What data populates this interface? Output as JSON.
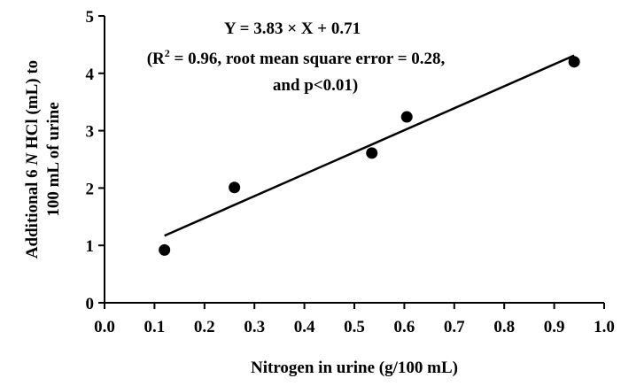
{
  "chart_data": {
    "type": "scatter",
    "title": "",
    "xlabel": "Nitrogen in urine (g/100 mL)",
    "ylabel_parts": [
      "Additional 6 ",
      "N",
      " HCl (mL) to"
    ],
    "ylabel_line2": "100 mL of urine",
    "xlim": [
      0.0,
      1.0
    ],
    "ylim": [
      0,
      5
    ],
    "x_ticks": [
      0.0,
      0.1,
      0.2,
      0.3,
      0.4,
      0.5,
      0.6,
      0.7,
      0.8,
      0.9,
      1.0
    ],
    "x_tick_labels": [
      "0.0",
      "0.1",
      "0.2",
      "0.3",
      "0.4",
      "0.5",
      "0.6",
      "0.7",
      "0.8",
      "0.9",
      "1.0"
    ],
    "y_ticks": [
      0,
      1,
      2,
      3,
      4,
      5
    ],
    "y_tick_labels": [
      "0",
      "1",
      "2",
      "3",
      "4",
      "5"
    ],
    "grid": false,
    "legend": "none",
    "points": [
      {
        "x": 0.12,
        "y": 0.92
      },
      {
        "x": 0.26,
        "y": 2.01
      },
      {
        "x": 0.535,
        "y": 2.61
      },
      {
        "x": 0.605,
        "y": 3.24
      },
      {
        "x": 0.94,
        "y": 4.2
      }
    ],
    "regression": {
      "slope": 3.83,
      "intercept": 0.71,
      "x_range": [
        0.12,
        0.94
      ]
    },
    "annotations": {
      "equation": "Y = 3.83 × X + 0.71",
      "stats_prefix": "(R",
      "stats_sup": "2",
      "stats_rest": " = 0.96, root mean square error = 0.28,",
      "stats_line2": "and p<0.01)"
    },
    "colors": {
      "marker": "#000000",
      "line": "#000000",
      "axis": "#000000"
    }
  }
}
